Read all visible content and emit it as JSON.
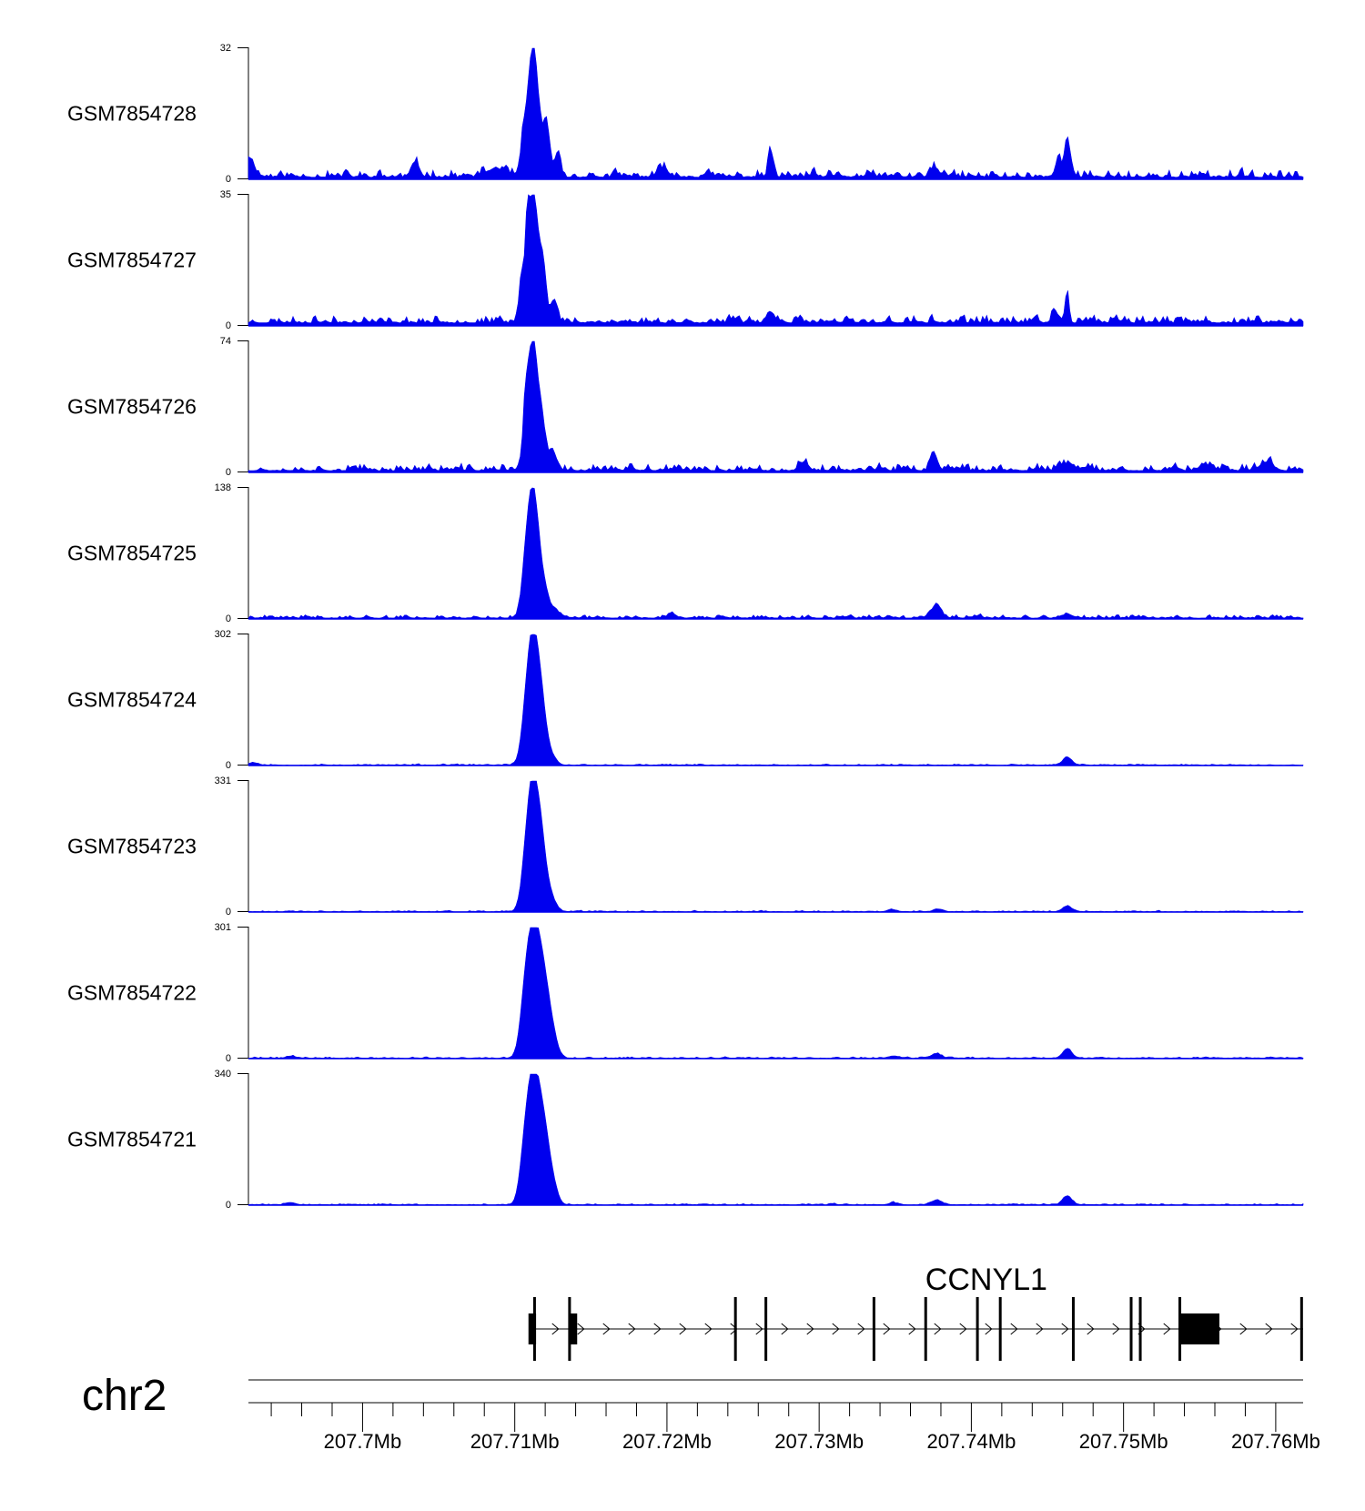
{
  "chart_data": {
    "type": "area",
    "chromosome": "chr2",
    "xlim_mb": [
      207.6925,
      207.7618
    ],
    "x_ticks": [
      "207.7Mb",
      "207.71Mb",
      "207.72Mb",
      "207.73Mb",
      "207.74Mb",
      "207.75Mb",
      "207.76Mb"
    ],
    "x_tick_values_mb": [
      207.7,
      207.71,
      207.72,
      207.73,
      207.74,
      207.75,
      207.76
    ],
    "fill_color": "#0000EE",
    "tracks": [
      {
        "name": "GSM7854728",
        "ymin": "0",
        "ymax": "32",
        "ylim": [
          0,
          32
        ],
        "baseline": 0.5,
        "peaks": [
          [
            207.6925,
            0.35,
            5
          ],
          [
            207.7112,
            0.38,
            32
          ],
          [
            207.7105,
            0.12,
            5
          ],
          [
            207.7121,
            0.2,
            11
          ],
          [
            207.7128,
            0.2,
            6
          ],
          [
            207.7268,
            0.15,
            7
          ],
          [
            207.7463,
            0.2,
            10
          ],
          [
            207.7457,
            0.15,
            5
          ],
          [
            207.7035,
            0.25,
            3
          ],
          [
            207.7088,
            0.6,
            2
          ],
          [
            207.7198,
            0.3,
            2
          ],
          [
            207.7376,
            0.3,
            2
          ]
        ],
        "noise": 2.2,
        "seed": 11
      },
      {
        "name": "GSM7854727",
        "ymin": "0",
        "ymax": "35",
        "ylim": [
          0,
          35
        ],
        "baseline": 0.8,
        "peaks": [
          [
            207.7112,
            0.38,
            35
          ],
          [
            207.7108,
            0.12,
            12
          ],
          [
            207.7104,
            0.15,
            8
          ],
          [
            207.7119,
            0.2,
            11
          ],
          [
            207.7126,
            0.2,
            6
          ],
          [
            207.7463,
            0.12,
            9
          ],
          [
            207.7455,
            0.2,
            3
          ],
          [
            207.7268,
            0.25,
            3
          ]
        ],
        "noise": 2.3,
        "seed": 23
      },
      {
        "name": "GSM7854726",
        "ymin": "0",
        "ymax": "74",
        "ylim": [
          0,
          74
        ],
        "baseline": 1.0,
        "peaks": [
          [
            207.7112,
            0.38,
            74
          ],
          [
            207.7107,
            0.15,
            17
          ],
          [
            207.7119,
            0.2,
            13
          ],
          [
            207.7125,
            0.25,
            10
          ],
          [
            207.7375,
            0.2,
            11
          ],
          [
            207.729,
            0.3,
            4
          ],
          [
            207.7463,
            0.4,
            4
          ],
          [
            207.7594,
            0.4,
            5
          ],
          [
            207.7555,
            0.3,
            3
          ]
        ],
        "noise": 4.6,
        "seed": 37
      },
      {
        "name": "GSM7854725",
        "ymin": "0",
        "ymax": "138",
        "ylim": [
          0,
          138
        ],
        "baseline": 1.0,
        "peaks": [
          [
            207.7112,
            0.4,
            138
          ],
          [
            207.7107,
            0.25,
            22
          ],
          [
            207.712,
            0.25,
            20
          ],
          [
            207.7126,
            0.3,
            10
          ],
          [
            207.7378,
            0.25,
            13
          ],
          [
            207.7373,
            0.2,
            6
          ],
          [
            207.7203,
            0.3,
            4
          ],
          [
            207.7463,
            0.3,
            4
          ]
        ],
        "noise": 3.8,
        "seed": 41
      },
      {
        "name": "GSM7854724",
        "ymin": "0",
        "ymax": "302",
        "ylim": [
          0,
          302
        ],
        "baseline": 1.0,
        "peaks": [
          [
            207.7112,
            0.42,
            302
          ],
          [
            207.7118,
            0.3,
            70
          ],
          [
            207.7107,
            0.3,
            35
          ],
          [
            207.7123,
            0.35,
            25
          ],
          [
            207.7463,
            0.3,
            18
          ],
          [
            207.6928,
            0.3,
            6
          ]
        ],
        "noise": 3.0,
        "seed": 53
      },
      {
        "name": "GSM7854723",
        "ymin": "0",
        "ymax": "331",
        "ylim": [
          0,
          331
        ],
        "baseline": 1.0,
        "peaks": [
          [
            207.7112,
            0.42,
            331
          ],
          [
            207.7118,
            0.3,
            90
          ],
          [
            207.7107,
            0.3,
            40
          ],
          [
            207.7123,
            0.35,
            40
          ],
          [
            207.7463,
            0.3,
            14
          ],
          [
            207.7378,
            0.3,
            6
          ],
          [
            207.7348,
            0.3,
            5
          ]
        ],
        "noise": 3.2,
        "seed": 61
      },
      {
        "name": "GSM7854722",
        "ymin": "0",
        "ymax": "301",
        "ylim": [
          0,
          301
        ],
        "baseline": 1.0,
        "peaks": [
          [
            207.7112,
            0.45,
            301
          ],
          [
            207.7119,
            0.35,
            120
          ],
          [
            207.7106,
            0.3,
            60
          ],
          [
            207.7124,
            0.35,
            60
          ],
          [
            207.7463,
            0.3,
            22
          ],
          [
            207.7377,
            0.35,
            10
          ],
          [
            207.7349,
            0.3,
            5
          ],
          [
            207.6953,
            0.3,
            5
          ]
        ],
        "noise": 3.4,
        "seed": 71
      },
      {
        "name": "GSM7854721",
        "ymin": "0",
        "ymax": "340",
        "ylim": [
          0,
          340
        ],
        "baseline": 1.0,
        "peaks": [
          [
            207.7112,
            0.45,
            340
          ],
          [
            207.7119,
            0.35,
            130
          ],
          [
            207.7106,
            0.3,
            60
          ],
          [
            207.7124,
            0.35,
            60
          ],
          [
            207.7463,
            0.3,
            22
          ],
          [
            207.7377,
            0.35,
            12
          ],
          [
            207.7349,
            0.3,
            5
          ],
          [
            207.6953,
            0.3,
            6
          ]
        ],
        "noise": 3.6,
        "seed": 83
      }
    ],
    "gene": {
      "name": "CCNYL1",
      "start_mb": 207.7112,
      "end_mb": 207.7618,
      "strand": "+",
      "exon_lines_mb": [
        207.7113,
        207.7136,
        207.7245,
        207.7265,
        207.7336,
        207.737,
        207.7404,
        207.7419,
        207.7467,
        207.7505,
        207.7511,
        207.7537,
        207.7617
      ],
      "exon_blocks_mb": [
        [
          207.7109,
          207.7114
        ],
        [
          207.7136,
          207.7141
        ],
        [
          207.7537,
          207.7563
        ]
      ]
    }
  }
}
